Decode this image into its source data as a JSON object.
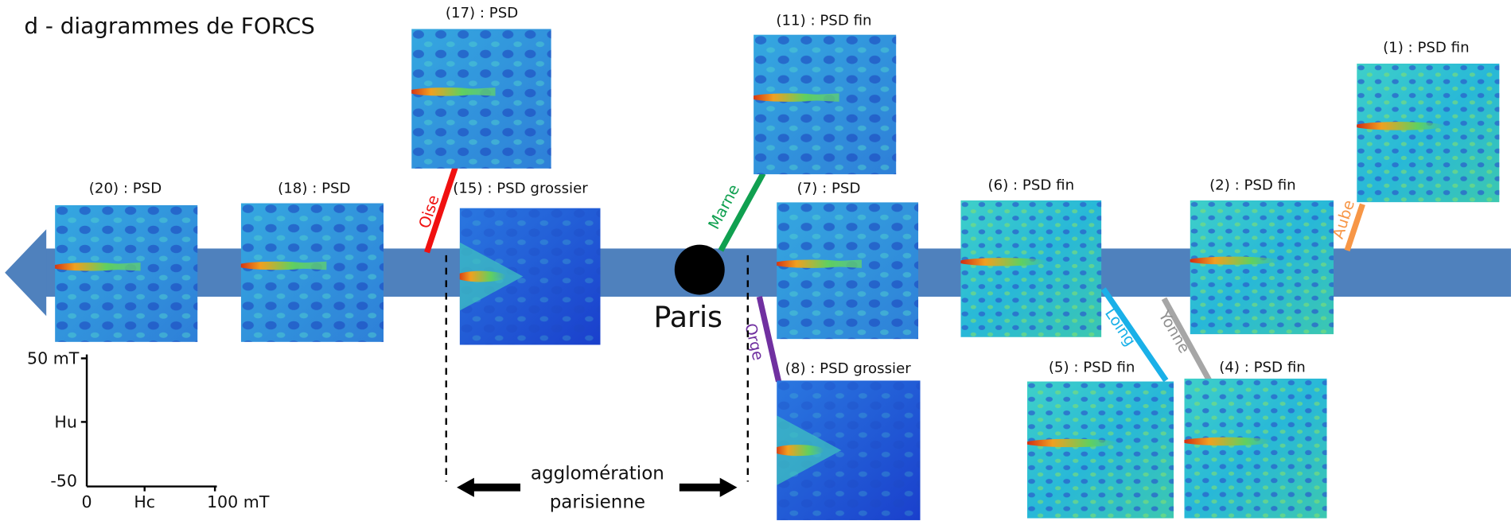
{
  "title": "d - diagrammes de FORCS",
  "panels": [
    {
      "label": "(20) :  PSD"
    },
    {
      "label": "(18) : PSD"
    },
    {
      "label": "(17) : PSD"
    },
    {
      "label": "(15) : PSD grossier"
    },
    {
      "label": "(11) : PSD  fin"
    },
    {
      "label": "(7) : PSD"
    },
    {
      "label": "(8) : PSD grossier"
    },
    {
      "label": "(6) : PSD fin"
    },
    {
      "label": "(5) : PSD fin"
    },
    {
      "label": "(4) : PSD fin"
    },
    {
      "label": "(2) : PSD fin"
    },
    {
      "label": "(1) : PSD  fin"
    }
  ],
  "rivers": [
    {
      "label": "Oise"
    },
    {
      "label": "Marne"
    },
    {
      "label": "Orge"
    },
    {
      "label": "Loing"
    },
    {
      "label": "Yonne"
    },
    {
      "label": "Aube"
    }
  ],
  "city": "Paris",
  "agglomeration": [
    "agglomération",
    "parisienne"
  ],
  "scale": {
    "y_top": "50 mT",
    "y_name": "Hu",
    "y_bottom": "-50",
    "x_left": "0",
    "x_name": "Hc",
    "x_right": "100 mT"
  }
}
